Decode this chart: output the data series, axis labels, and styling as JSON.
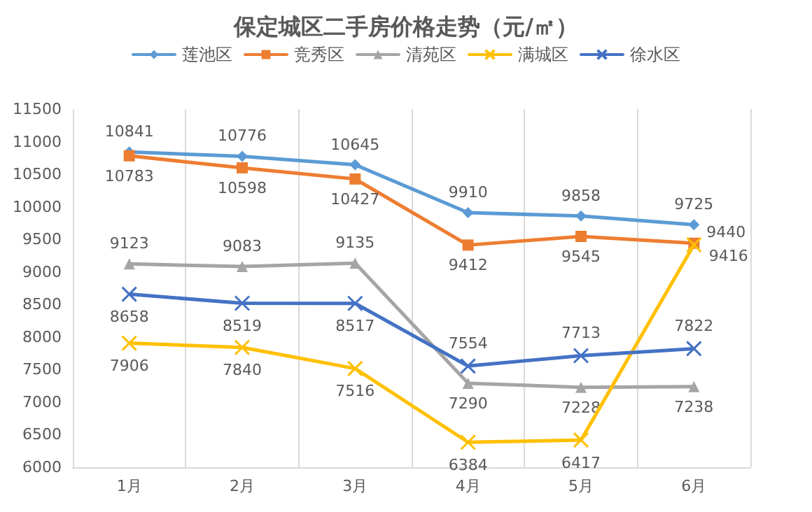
{
  "chart_data": {
    "type": "line",
    "title": "保定城区二手房价格走势（元/㎡）",
    "categories": [
      "1月",
      "2月",
      "3月",
      "4月",
      "5月",
      "6月"
    ],
    "series": [
      {
        "name": "莲池区",
        "color": "#5b9bd5",
        "marker": "diamond",
        "values": [
          10841,
          10776,
          10645,
          9910,
          9858,
          9725
        ]
      },
      {
        "name": "竞秀区",
        "color": "#ed7d31",
        "marker": "square",
        "values": [
          10783,
          10598,
          10427,
          9412,
          9545,
          9440
        ]
      },
      {
        "name": "清苑区",
        "color": "#a5a5a5",
        "marker": "triangle",
        "values": [
          9123,
          9083,
          9135,
          7290,
          7228,
          7238
        ]
      },
      {
        "name": "满城区",
        "color": "#ffc000",
        "marker": "cross",
        "values": [
          7906,
          7840,
          7516,
          6384,
          6417,
          9416
        ]
      },
      {
        "name": "徐水区",
        "color": "#4472c4",
        "marker": "cross",
        "values": [
          8658,
          8519,
          8517,
          7554,
          7713,
          7822
        ]
      }
    ],
    "ylim": [
      6000,
      11500
    ],
    "yticks": [
      6000,
      6500,
      7000,
      7500,
      8000,
      8500,
      9000,
      9500,
      10000,
      10500,
      11000,
      11500
    ],
    "grid": "x",
    "legend": "top",
    "data_labels": true
  }
}
